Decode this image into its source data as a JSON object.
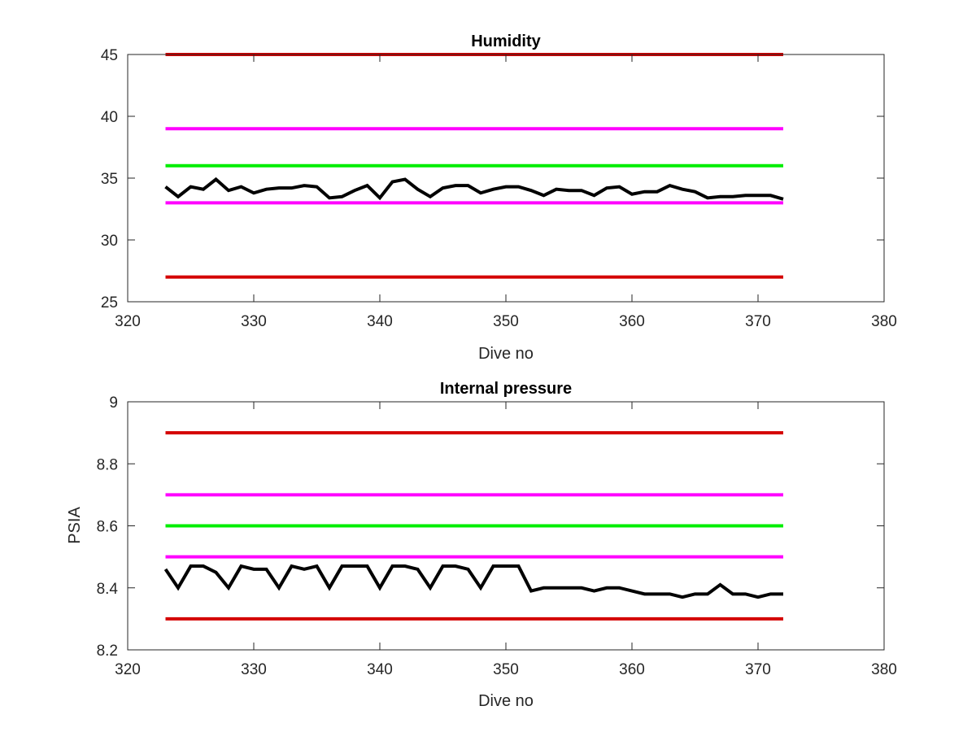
{
  "chart_data": [
    {
      "type": "line",
      "title": "Humidity",
      "xlabel": "Dive no",
      "ylabel": "",
      "xlim": [
        320,
        380
      ],
      "ylim": [
        25,
        45
      ],
      "xticks": [
        320,
        330,
        340,
        350,
        360,
        370,
        380
      ],
      "yticks": [
        25,
        30,
        35,
        40,
        45
      ],
      "grid": false,
      "series": [
        {
          "color": "#d40000",
          "style": "threshold",
          "x": [
            323,
            372
          ],
          "y": [
            45,
            45
          ]
        },
        {
          "color": "#ff00ff",
          "style": "threshold",
          "x": [
            323,
            372
          ],
          "y": [
            39,
            39
          ]
        },
        {
          "color": "#00ee00",
          "style": "threshold",
          "x": [
            323,
            372
          ],
          "y": [
            36,
            36
          ]
        },
        {
          "color": "#ff00ff",
          "style": "threshold",
          "x": [
            323,
            372
          ],
          "y": [
            33,
            33
          ]
        },
        {
          "color": "#d40000",
          "style": "threshold",
          "x": [
            323,
            372
          ],
          "y": [
            27,
            27
          ]
        },
        {
          "color": "#000000",
          "style": "measured",
          "x": [
            323,
            324,
            325,
            326,
            327,
            328,
            329,
            330,
            331,
            332,
            333,
            334,
            335,
            336,
            337,
            338,
            339,
            340,
            341,
            342,
            343,
            344,
            345,
            346,
            347,
            348,
            349,
            350,
            351,
            352,
            353,
            354,
            355,
            356,
            357,
            358,
            359,
            360,
            361,
            362,
            363,
            364,
            365,
            366,
            367,
            368,
            369,
            370,
            371,
            372
          ],
          "y": [
            34.3,
            33.5,
            34.3,
            34.1,
            34.9,
            34.0,
            34.3,
            33.8,
            34.1,
            34.2,
            34.2,
            34.4,
            34.3,
            33.4,
            33.5,
            34.0,
            34.4,
            33.4,
            34.7,
            34.9,
            34.1,
            33.5,
            34.2,
            34.4,
            34.4,
            33.8,
            34.1,
            34.3,
            34.3,
            34.0,
            33.6,
            34.1,
            34.0,
            34.0,
            33.6,
            34.2,
            34.3,
            33.7,
            33.9,
            33.9,
            34.4,
            34.1,
            33.9,
            33.4,
            33.5,
            33.5,
            33.6,
            33.6,
            33.6,
            33.3
          ]
        }
      ]
    },
    {
      "type": "line",
      "title": "Internal pressure",
      "xlabel": "Dive no",
      "ylabel": "PSIA",
      "xlim": [
        320,
        380
      ],
      "ylim": [
        8.2,
        9.0
      ],
      "xticks": [
        320,
        330,
        340,
        350,
        360,
        370,
        380
      ],
      "yticks": [
        8.2,
        8.4,
        8.6,
        8.8,
        9
      ],
      "ytick_labels": [
        "8.2",
        "8.4",
        "8.6",
        "8.8",
        "9"
      ],
      "grid": false,
      "series": [
        {
          "color": "#d40000",
          "style": "threshold",
          "x": [
            323,
            372
          ],
          "y": [
            8.9,
            8.9
          ]
        },
        {
          "color": "#ff00ff",
          "style": "threshold",
          "x": [
            323,
            372
          ],
          "y": [
            8.7,
            8.7
          ]
        },
        {
          "color": "#00ee00",
          "style": "threshold",
          "x": [
            323,
            372
          ],
          "y": [
            8.6,
            8.6
          ]
        },
        {
          "color": "#ff00ff",
          "style": "threshold",
          "x": [
            323,
            372
          ],
          "y": [
            8.5,
            8.5
          ]
        },
        {
          "color": "#d40000",
          "style": "threshold",
          "x": [
            323,
            372
          ],
          "y": [
            8.3,
            8.3
          ]
        },
        {
          "color": "#000000",
          "style": "measured",
          "x": [
            323,
            324,
            325,
            326,
            327,
            328,
            329,
            330,
            331,
            332,
            333,
            334,
            335,
            336,
            337,
            338,
            339,
            340,
            341,
            342,
            343,
            344,
            345,
            346,
            347,
            348,
            349,
            350,
            351,
            352,
            353,
            354,
            355,
            356,
            357,
            358,
            359,
            360,
            361,
            362,
            363,
            364,
            365,
            366,
            367,
            368,
            369,
            370,
            371,
            372
          ],
          "y": [
            8.46,
            8.4,
            8.47,
            8.47,
            8.45,
            8.4,
            8.47,
            8.46,
            8.46,
            8.4,
            8.47,
            8.46,
            8.47,
            8.4,
            8.47,
            8.47,
            8.47,
            8.4,
            8.47,
            8.47,
            8.46,
            8.4,
            8.47,
            8.47,
            8.46,
            8.4,
            8.47,
            8.47,
            8.47,
            8.39,
            8.4,
            8.4,
            8.4,
            8.4,
            8.39,
            8.4,
            8.4,
            8.39,
            8.38,
            8.38,
            8.38,
            8.37,
            8.38,
            8.38,
            8.41,
            8.38,
            8.38,
            8.37,
            8.38,
            8.38
          ]
        }
      ]
    }
  ]
}
